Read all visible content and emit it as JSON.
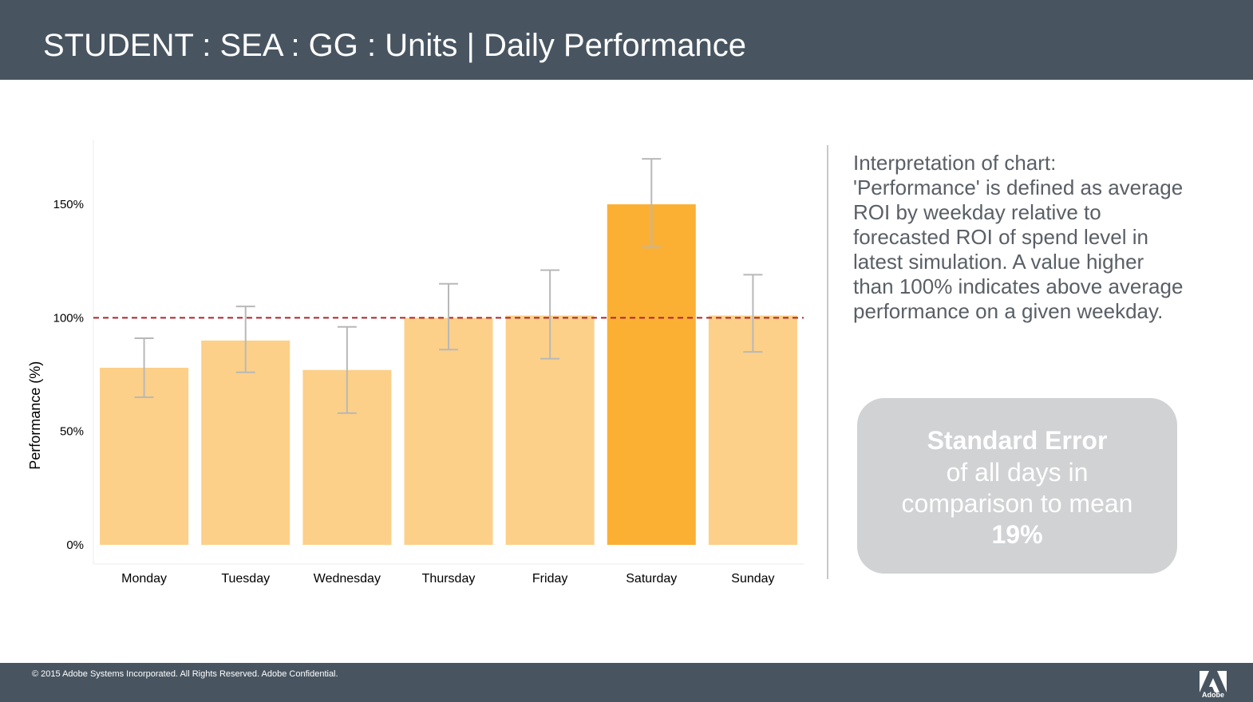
{
  "header": {
    "title": "STUDENT : SEA : GG : Units | Daily Performance"
  },
  "chart_data": {
    "type": "bar",
    "title": "",
    "xlabel": "",
    "ylabel": "Performance (%)",
    "categories": [
      "Monday",
      "Tuesday",
      "Wednesday",
      "Thursday",
      "Friday",
      "Saturday",
      "Sunday"
    ],
    "values": [
      78,
      90,
      77,
      100,
      101,
      150,
      101
    ],
    "error_low": [
      65,
      76,
      58,
      86,
      82,
      131,
      85
    ],
    "error_high": [
      91,
      105,
      96,
      115,
      121,
      170,
      119
    ],
    "highlight": "Saturday",
    "reference_line": {
      "value": 100,
      "style": "dashed",
      "color": "#b0232a"
    },
    "y_ticks": [
      0,
      50,
      100,
      150
    ],
    "y_tick_labels": [
      "0%",
      "50%",
      "100%",
      "150%"
    ],
    "ylim": [
      0,
      178
    ],
    "colors": {
      "bar": "#fcd089",
      "highlight": "#fbb034",
      "error_bar": "#b8b8b8"
    },
    "grid": false
  },
  "interpretation": {
    "text": "Interpretation of chart: 'Performance' is defined as average ROI by weekday relative to forecasted ROI of spend level in latest simulation. A value higher than 100% indicates above average performance on a given weekday."
  },
  "standard_error": {
    "title": "Standard Error",
    "line1": "of all days in",
    "line2": "comparison to mean",
    "value": "19%"
  },
  "footer": {
    "copyright": "© 2015 Adobe Systems Incorporated.  All Rights Reserved.  Adobe Confidential.",
    "logo_text": "Adobe",
    "logo_icon": "adobe-logo-icon"
  }
}
